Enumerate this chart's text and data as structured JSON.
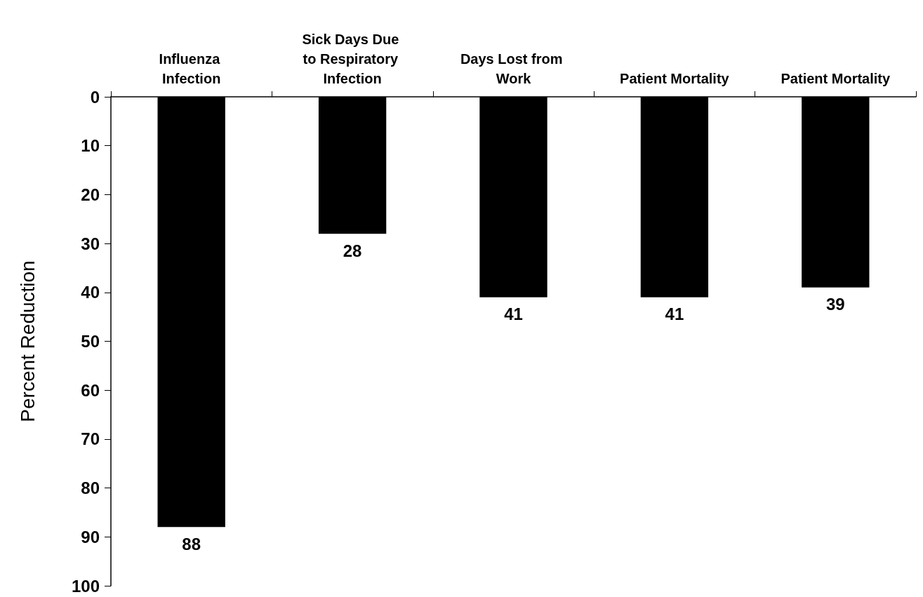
{
  "chart_data": {
    "type": "bar",
    "ylabel": "Percent Reduction",
    "categories": [
      "Influenza Infection",
      "Sick Days Due to Respiratory Infection",
      "Days Lost from Work",
      "Patient Mortality",
      "Patient Mortality"
    ],
    "values": [
      88,
      28,
      41,
      41,
      39
    ],
    "color": "#000000",
    "ylim": [
      100,
      0
    ],
    "yticks": [
      0,
      10,
      20,
      30,
      40,
      50,
      60,
      70,
      80,
      90,
      100
    ],
    "data_labels": true
  }
}
